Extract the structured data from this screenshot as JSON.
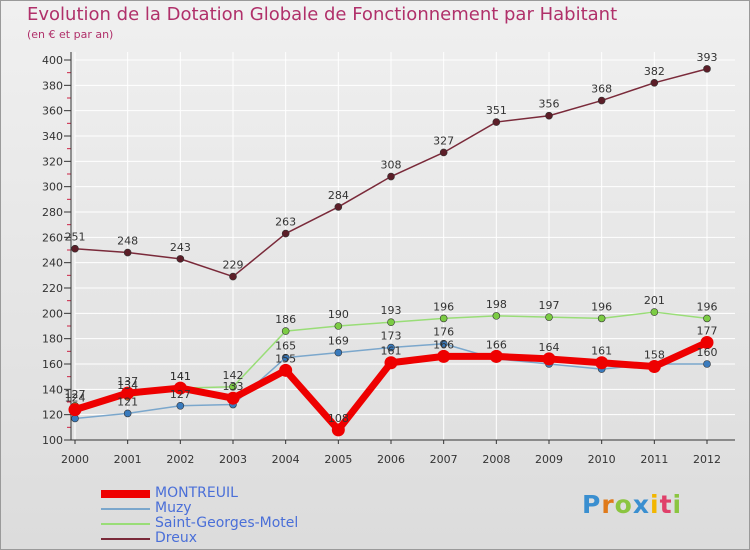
{
  "title": "Evolution de la Dotation Globale de Fonctionnement par Habitant",
  "subtitle": "(en € et par an)",
  "logo_text": "Proxiti",
  "colors": {
    "title": "#b0306a",
    "legend_text": "#4a6fd8",
    "grid": "#ffffff",
    "axis": "#333333"
  },
  "chart_data": {
    "type": "line",
    "title": "Evolution de la Dotation Globale de Fonctionnement par Habitant",
    "subtitle": "(en € et par an)",
    "xlabel": "",
    "ylabel": "",
    "x": [
      "2000",
      "2001",
      "2002",
      "2003",
      "2004",
      "2005",
      "2006",
      "2007",
      "2008",
      "2009",
      "2010",
      "2011",
      "2012"
    ],
    "ylim": [
      100,
      400
    ],
    "yticks": [
      100,
      120,
      140,
      160,
      180,
      200,
      220,
      240,
      260,
      280,
      300,
      320,
      340,
      360,
      380,
      400
    ],
    "grid": true,
    "legend_position": "bottom-left",
    "series": [
      {
        "name": "Dreux",
        "color": "#7a2a3a",
        "marker_color": "#5c1e28",
        "width": 1.5,
        "values": [
          251,
          248,
          243,
          229,
          263,
          284,
          308,
          327,
          351,
          356,
          368,
          382,
          393
        ],
        "labels": [
          "251",
          "248",
          "243",
          "229",
          "263",
          "284",
          "308",
          "327",
          "351",
          "356",
          "368",
          "382",
          "393"
        ]
      },
      {
        "name": "Saint-Georges-Motel",
        "color": "#99dd77",
        "marker_color": "#7ccc44",
        "width": 1.5,
        "values": [
          127,
          134,
          141,
          142,
          186,
          190,
          193,
          196,
          198,
          197,
          196,
          201,
          196
        ],
        "labels": [
          "127",
          "134",
          "141",
          "142",
          "186",
          "190",
          "193",
          "196",
          "198",
          "197",
          "196",
          "201",
          "196"
        ]
      },
      {
        "name": "Muzy",
        "color": "#7ba7cc",
        "marker_color": "#3a7bbd",
        "width": 1.5,
        "values": [
          117,
          121,
          127,
          128,
          165,
          169,
          173,
          176,
          164,
          160,
          156,
          160,
          160
        ],
        "labels": [
          "",
          "121",
          "127",
          "",
          "165",
          "169",
          "173",
          "176",
          "",
          "",
          "",
          "",
          "160"
        ]
      },
      {
        "name": "MONTREUIL",
        "color": "#ee0000",
        "marker_color": "#cc0000",
        "width": 7,
        "values": [
          124,
          137,
          141,
          133,
          155,
          108,
          161,
          166,
          166,
          164,
          161,
          158,
          177
        ],
        "labels": [
          "124",
          "137",
          "141",
          "133",
          "155",
          "108",
          "161",
          "166",
          "166",
          "164",
          "161",
          "158",
          "177"
        ]
      }
    ]
  },
  "legend": {
    "items": [
      {
        "label": "MONTREUIL",
        "color": "#ee0000",
        "thickness": 7
      },
      {
        "label": "Muzy",
        "color": "#7ba7cc",
        "thickness": 2
      },
      {
        "label": "Saint-Georges-Motel",
        "color": "#99dd77",
        "thickness": 2
      },
      {
        "label": "Dreux",
        "color": "#7a2a3a",
        "thickness": 2
      }
    ]
  }
}
